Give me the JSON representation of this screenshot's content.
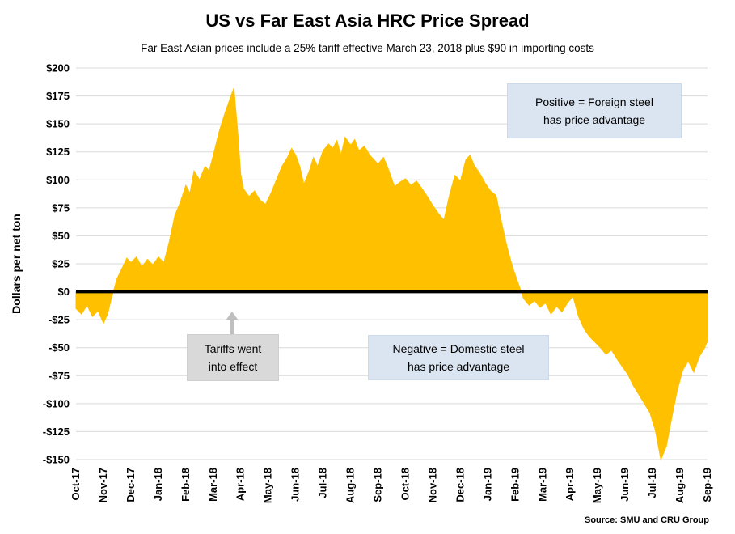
{
  "header": {
    "title": "US vs Far East Asia HRC Price Spread",
    "subtitle": "Far East Asian prices include a 25% tariff effective March 23, 2018 plus $90 in importing costs"
  },
  "annotations": {
    "positive": {
      "line1": "Positive = Foreign steel",
      "line2": "has price advantage"
    },
    "negative": {
      "line1": "Negative = Domestic steel",
      "line2": "has price advantage"
    },
    "tariffs": {
      "line1": "Tariffs went",
      "line2": "into effect"
    }
  },
  "source": "Source: SMU and CRU Group",
  "chart_data": {
    "type": "area",
    "title": "US vs Far East Asia HRC Price Spread",
    "subtitle": "Far East Asian prices include a 25% tariff effective March 23, 2018 plus $90 in importing costs",
    "xlabel": "",
    "ylabel": "Dollars per net ton",
    "ylim": [
      -150,
      200
    ],
    "ytick_interval": 25,
    "grid": "horizontal",
    "legend": "none",
    "baseline": 0,
    "colors": {
      "area": "#FFC000",
      "zero_line": "#000000",
      "gridline": "#D9D9D9"
    },
    "x_categories": [
      "Oct-17",
      "Nov-17",
      "Dec-17",
      "Jan-18",
      "Feb-18",
      "Mar-18",
      "Apr-18",
      "May-18",
      "Jun-18",
      "Jul-18",
      "Aug-18",
      "Sep-18",
      "Oct-18",
      "Nov-18",
      "Dec-18",
      "Jan-19",
      "Feb-19",
      "Mar-19",
      "Apr-19",
      "May-19",
      "Jun-19",
      "Jul-19",
      "Aug-19",
      "Sep-19"
    ],
    "yticks": [
      {
        "value": 200,
        "label": "$200"
      },
      {
        "value": 175,
        "label": "$175"
      },
      {
        "value": 150,
        "label": "$150"
      },
      {
        "value": 125,
        "label": "$125"
      },
      {
        "value": 100,
        "label": "$100"
      },
      {
        "value": 75,
        "label": "$75"
      },
      {
        "value": 50,
        "label": "$50"
      },
      {
        "value": 25,
        "label": "$25"
      },
      {
        "value": 0,
        "label": "$0"
      },
      {
        "value": -25,
        "label": "-$25"
      },
      {
        "value": -50,
        "label": "-$50"
      },
      {
        "value": -75,
        "label": "-$75"
      },
      {
        "value": -100,
        "label": "-$100"
      },
      {
        "value": -125,
        "label": "-$125"
      },
      {
        "value": -150,
        "label": "-$150"
      }
    ],
    "series": [
      {
        "name": "US vs Far East Asia HRC price spread ($/net ton)",
        "color": "#FFC000",
        "points": [
          [
            0,
            -15
          ],
          [
            0.2,
            -20
          ],
          [
            0.4,
            -12
          ],
          [
            0.6,
            -22
          ],
          [
            0.8,
            -17
          ],
          [
            1,
            -28
          ],
          [
            1.15,
            -20
          ],
          [
            1.3,
            -5
          ],
          [
            1.5,
            12
          ],
          [
            1.7,
            22
          ],
          [
            1.85,
            30
          ],
          [
            2,
            26
          ],
          [
            2.2,
            31
          ],
          [
            2.4,
            22
          ],
          [
            2.6,
            29
          ],
          [
            2.8,
            24
          ],
          [
            3,
            31
          ],
          [
            3.2,
            26
          ],
          [
            3.4,
            45
          ],
          [
            3.6,
            68
          ],
          [
            3.8,
            80
          ],
          [
            4,
            95
          ],
          [
            4.15,
            88
          ],
          [
            4.3,
            108
          ],
          [
            4.5,
            100
          ],
          [
            4.7,
            112
          ],
          [
            4.85,
            108
          ],
          [
            5,
            122
          ],
          [
            5.2,
            142
          ],
          [
            5.4,
            158
          ],
          [
            5.6,
            172
          ],
          [
            5.75,
            182
          ],
          [
            5.9,
            140
          ],
          [
            6,
            105
          ],
          [
            6.1,
            92
          ],
          [
            6.3,
            85
          ],
          [
            6.5,
            90
          ],
          [
            6.7,
            82
          ],
          [
            6.9,
            78
          ],
          [
            7.1,
            88
          ],
          [
            7.3,
            100
          ],
          [
            7.5,
            112
          ],
          [
            7.7,
            120
          ],
          [
            7.85,
            128
          ],
          [
            8,
            122
          ],
          [
            8.15,
            112
          ],
          [
            8.3,
            96
          ],
          [
            8.5,
            108
          ],
          [
            8.65,
            120
          ],
          [
            8.8,
            112
          ],
          [
            9,
            126
          ],
          [
            9.2,
            132
          ],
          [
            9.35,
            128
          ],
          [
            9.5,
            135
          ],
          [
            9.65,
            122
          ],
          [
            9.8,
            138
          ],
          [
            10,
            131
          ],
          [
            10.15,
            136
          ],
          [
            10.3,
            126
          ],
          [
            10.5,
            130
          ],
          [
            10.7,
            122
          ],
          [
            10.85,
            118
          ],
          [
            11,
            114
          ],
          [
            11.2,
            120
          ],
          [
            11.4,
            108
          ],
          [
            11.6,
            94
          ],
          [
            11.8,
            98
          ],
          [
            12,
            101
          ],
          [
            12.2,
            95
          ],
          [
            12.4,
            99
          ],
          [
            12.6,
            92
          ],
          [
            12.8,
            85
          ],
          [
            13,
            77
          ],
          [
            13.2,
            70
          ],
          [
            13.4,
            64
          ],
          [
            13.6,
            86
          ],
          [
            13.8,
            104
          ],
          [
            14,
            99
          ],
          [
            14.2,
            118
          ],
          [
            14.35,
            122
          ],
          [
            14.5,
            113
          ],
          [
            14.7,
            106
          ],
          [
            14.9,
            97
          ],
          [
            15.1,
            90
          ],
          [
            15.3,
            86
          ],
          [
            15.5,
            62
          ],
          [
            15.7,
            40
          ],
          [
            15.9,
            22
          ],
          [
            16.1,
            8
          ],
          [
            16.3,
            -6
          ],
          [
            16.5,
            -12
          ],
          [
            16.7,
            -8
          ],
          [
            16.9,
            -14
          ],
          [
            17.1,
            -10
          ],
          [
            17.3,
            -20
          ],
          [
            17.5,
            -13
          ],
          [
            17.7,
            -18
          ],
          [
            17.9,
            -10
          ],
          [
            18.1,
            -4
          ],
          [
            18.3,
            -22
          ],
          [
            18.5,
            -33
          ],
          [
            18.7,
            -40
          ],
          [
            18.9,
            -45
          ],
          [
            19.1,
            -50
          ],
          [
            19.3,
            -56
          ],
          [
            19.5,
            -52
          ],
          [
            19.7,
            -60
          ],
          [
            19.9,
            -67
          ],
          [
            20.1,
            -74
          ],
          [
            20.3,
            -84
          ],
          [
            20.5,
            -92
          ],
          [
            20.7,
            -100
          ],
          [
            20.9,
            -108
          ],
          [
            21.1,
            -124
          ],
          [
            21.3,
            -150
          ],
          [
            21.5,
            -138
          ],
          [
            21.7,
            -112
          ],
          [
            21.9,
            -88
          ],
          [
            22.1,
            -70
          ],
          [
            22.3,
            -62
          ],
          [
            22.5,
            -72
          ],
          [
            22.7,
            -58
          ],
          [
            22.9,
            -50
          ],
          [
            23,
            -44
          ]
        ]
      }
    ]
  }
}
